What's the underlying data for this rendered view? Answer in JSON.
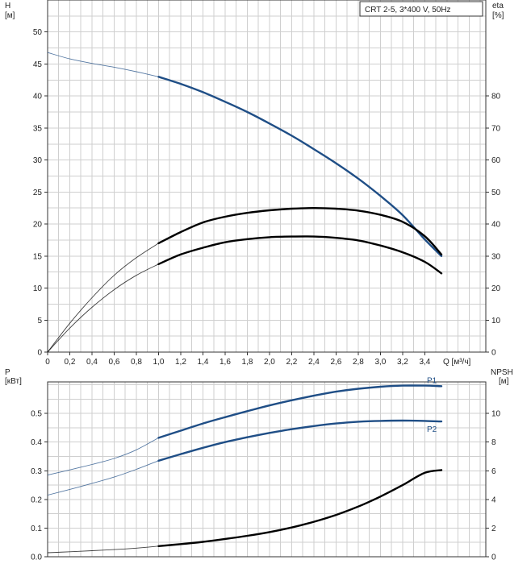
{
  "page": {
    "background": "#ffffff",
    "grid_color": "#cfcfcf"
  },
  "chart_data": [
    {
      "type": "line",
      "legend_box": "CRT 2-5, 3*400 V, 50Hz",
      "ylabel_left": "H",
      "ylabel_left_unit": "[м]",
      "ylabel_right": "eta",
      "ylabel_right_unit": "[%]",
      "xlabel": "Q [м³/ч]",
      "xlim": [
        0,
        3.95
      ],
      "ylim_left": [
        0,
        55
      ],
      "ylim_right": [
        0,
        110
      ],
      "x_ticks": [
        "0",
        "0,2",
        "0,4",
        "0,6",
        "0,8",
        "1,0",
        "1,2",
        "1,4",
        "1,6",
        "1,8",
        "2,0",
        "2,2",
        "2,4",
        "2,6",
        "2,8",
        "3,0",
        "3,2",
        "3,4"
      ],
      "y_ticks_left": [
        "0",
        "5",
        "10",
        "15",
        "20",
        "25",
        "30",
        "35",
        "40",
        "45",
        "50"
      ],
      "y_ticks_right": [
        "0",
        "10",
        "20",
        "30",
        "40",
        "50",
        "60",
        "70",
        "80"
      ],
      "grid": true,
      "series": [
        {
          "role": "H",
          "axis": "left",
          "color": "#1f4e86",
          "x": [
            0,
            0.2,
            0.4,
            0.6,
            0.8,
            1.0,
            1.2,
            1.4,
            1.6,
            1.8,
            2.0,
            2.2,
            2.4,
            2.6,
            2.8,
            3.0,
            3.2,
            3.4,
            3.55
          ],
          "y": [
            46.8,
            45.8,
            45.1,
            44.5,
            43.8,
            43.0,
            41.9,
            40.6,
            39.1,
            37.5,
            35.7,
            33.8,
            31.7,
            29.5,
            27.1,
            24.4,
            21.4,
            17.6,
            15.0
          ]
        },
        {
          "role": "pump efficiency",
          "axis": "right",
          "color": "#000000",
          "x": [
            0,
            0.2,
            0.4,
            0.6,
            0.8,
            1.0,
            1.2,
            1.4,
            1.6,
            1.8,
            2.0,
            2.2,
            2.4,
            2.6,
            2.8,
            3.0,
            3.2,
            3.4,
            3.55
          ],
          "y": [
            0,
            9,
            17,
            24,
            29.5,
            34,
            37.5,
            40.5,
            42.3,
            43.5,
            44.3,
            44.8,
            45.0,
            44.8,
            44.2,
            42.9,
            40.7,
            36.2,
            30.5
          ]
        },
        {
          "role": "total efficiency",
          "axis": "right",
          "color": "#000000",
          "x": [
            0,
            0.2,
            0.4,
            0.6,
            0.8,
            1.0,
            1.2,
            1.4,
            1.6,
            1.8,
            2.0,
            2.2,
            2.4,
            2.6,
            2.8,
            3.0,
            3.2,
            3.4,
            3.55
          ],
          "y": [
            0,
            7.5,
            14,
            19.5,
            24,
            27.5,
            30.5,
            32.6,
            34.3,
            35.3,
            35.9,
            36.1,
            36.1,
            35.7,
            34.9,
            33.3,
            31.2,
            28.2,
            24.6
          ]
        }
      ]
    },
    {
      "type": "line",
      "ylabel_left": "P",
      "ylabel_left_unit": "[кВт]",
      "ylabel_right": "NPSH",
      "ylabel_right_unit": "[м]",
      "xlim": [
        0,
        3.95
      ],
      "ylim_left": [
        0,
        0.61
      ],
      "ylim_right": [
        0,
        12.2
      ],
      "y_ticks_left": [
        "0.0",
        "0.1",
        "0.2",
        "0.3",
        "0.4",
        "0.5"
      ],
      "y_ticks_right": [
        "0",
        "2",
        "4",
        "6",
        "8",
        "10"
      ],
      "grid": true,
      "series": [
        {
          "name": "P1",
          "axis": "left",
          "color": "#1f4e86",
          "x": [
            0,
            0.2,
            0.4,
            0.6,
            0.8,
            1.0,
            1.2,
            1.4,
            1.6,
            1.8,
            2.0,
            2.2,
            2.4,
            2.6,
            2.8,
            3.0,
            3.2,
            3.4,
            3.55
          ],
          "y": [
            0.285,
            0.303,
            0.322,
            0.343,
            0.373,
            0.415,
            0.44,
            0.465,
            0.487,
            0.508,
            0.528,
            0.546,
            0.562,
            0.576,
            0.586,
            0.593,
            0.597,
            0.597,
            0.595
          ]
        },
        {
          "name": "P2",
          "axis": "left",
          "color": "#1f4e86",
          "x": [
            0,
            0.2,
            0.4,
            0.6,
            0.8,
            1.0,
            1.2,
            1.4,
            1.6,
            1.8,
            2.0,
            2.2,
            2.4,
            2.6,
            2.8,
            3.0,
            3.2,
            3.4,
            3.55
          ],
          "y": [
            0.215,
            0.235,
            0.256,
            0.278,
            0.305,
            0.335,
            0.358,
            0.38,
            0.4,
            0.417,
            0.432,
            0.445,
            0.456,
            0.465,
            0.471,
            0.474,
            0.475,
            0.474,
            0.472
          ]
        },
        {
          "role": "NPSH",
          "axis": "right",
          "color": "#000000",
          "x": [
            0,
            0.2,
            0.4,
            0.6,
            0.8,
            1.0,
            1.2,
            1.4,
            1.6,
            1.8,
            2.0,
            2.2,
            2.4,
            2.6,
            2.8,
            3.0,
            3.2,
            3.4,
            3.55
          ],
          "y": [
            0.28,
            0.35,
            0.42,
            0.5,
            0.6,
            0.74,
            0.88,
            1.04,
            1.24,
            1.46,
            1.72,
            2.04,
            2.44,
            2.92,
            3.5,
            4.2,
            5.0,
            5.86,
            6.05
          ]
        }
      ]
    }
  ]
}
